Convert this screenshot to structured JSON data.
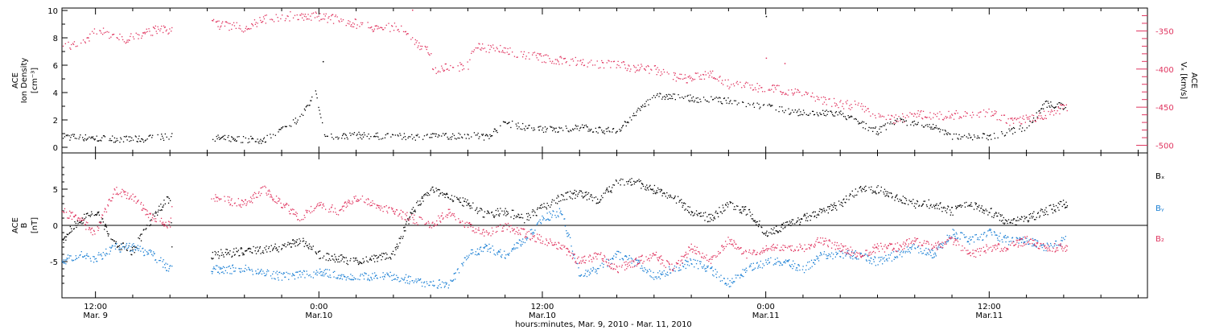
{
  "colors": {
    "axis": "#000000",
    "black": "#000000",
    "pink": "#e0345f",
    "blue": "#1a7fd4"
  },
  "time_axis": {
    "tick_times": [
      12,
      24,
      36,
      48,
      60
    ],
    "tick_labels": [
      [
        "12:00",
        "Mar. 9"
      ],
      [
        "0:00",
        "Mar.10"
      ],
      [
        "12:00",
        "Mar.10"
      ],
      [
        "0:00",
        "Mar.11"
      ],
      [
        "12:00",
        "Mar.11"
      ]
    ],
    "xlabel": "hours:minutes, Mar.  9, 2010 - Mar. 11, 2010",
    "range_hours_since_mar9_0000": [
      10.2,
      68.5
    ]
  },
  "chart_data": [
    {
      "type": "scatter",
      "panel": "top",
      "ylabel_left": [
        "ACE",
        "Ion Density",
        "[cm⁻³]"
      ],
      "ylabel_right": [
        "ACE",
        "Vₓ [km/s]"
      ],
      "y_left": {
        "range": [
          -0.5,
          10
        ],
        "ticks": [
          0,
          2,
          4,
          6,
          8,
          10
        ]
      },
      "y_right": {
        "range": [
          -510,
          -320
        ],
        "ticks": [
          -350,
          -400,
          -450,
          -500
        ]
      },
      "series": [
        {
          "name": "Ion Density",
          "color": "black",
          "axis": "left",
          "knots": [
            [
              10.2,
              0.8
            ],
            [
              14,
              0.6
            ],
            [
              16,
              0.8
            ],
            [
              20.5,
              0.6
            ],
            [
              21,
              0.5
            ],
            [
              23,
              2.2
            ],
            [
              23.8,
              4.0
            ],
            [
              24.3,
              0.8
            ],
            [
              26,
              0.9
            ],
            [
              28,
              0.8
            ],
            [
              30,
              0.8
            ],
            [
              32,
              0.9
            ],
            [
              33,
              0.8
            ],
            [
              34,
              1.8
            ],
            [
              35.5,
              1.4
            ],
            [
              37,
              1.3
            ],
            [
              38,
              1.5
            ],
            [
              39,
              1.3
            ],
            [
              40,
              1.2
            ],
            [
              42,
              3.8
            ],
            [
              44,
              3.6
            ],
            [
              46,
              3.4
            ],
            [
              48,
              3.0
            ],
            [
              50,
              2.5
            ],
            [
              52,
              2.5
            ],
            [
              53,
              1.8
            ],
            [
              54,
              1.2
            ],
            [
              55,
              2.0
            ],
            [
              57,
              1.5
            ],
            [
              58,
              0.8
            ],
            [
              60,
              0.8
            ],
            [
              62,
              1.5
            ],
            [
              63,
              3.2
            ],
            [
              64,
              3.0
            ]
          ],
          "gaps": [
            [
              16.1,
              18.2
            ]
          ],
          "outliers": [
            [
              24.2,
              6.3
            ],
            [
              35.8,
              1.3
            ],
            [
              48.0,
              9.6
            ]
          ]
        },
        {
          "name": "Vx",
          "color": "pink",
          "axis": "right",
          "knots": [
            [
              10.2,
              -372
            ],
            [
              11.3,
              -365
            ],
            [
              12,
              -348
            ],
            [
              13.5,
              -360
            ],
            [
              14.5,
              -355
            ],
            [
              15.5,
              -345
            ],
            [
              16.1,
              -350
            ],
            [
              18.2,
              -340
            ],
            [
              20,
              -345
            ],
            [
              21,
              -335
            ],
            [
              22.5,
              -330
            ],
            [
              24,
              -330
            ],
            [
              25,
              -335
            ],
            [
              26,
              -340
            ],
            [
              27,
              -345
            ],
            [
              28.5,
              -345
            ],
            [
              29,
              -360
            ],
            [
              30,
              -380
            ],
            [
              30.1,
              -400
            ],
            [
              32,
              -395
            ],
            [
              32.3,
              -370
            ],
            [
              34,
              -375
            ],
            [
              36,
              -385
            ],
            [
              38,
              -390
            ],
            [
              40,
              -395
            ],
            [
              42,
              -400
            ],
            [
              43,
              -410
            ],
            [
              44,
              -412
            ],
            [
              45,
              -405
            ],
            [
              46,
              -420
            ],
            [
              48,
              -425
            ],
            [
              50,
              -430
            ],
            [
              51,
              -440
            ],
            [
              52,
              -445
            ],
            [
              53,
              -448
            ],
            [
              54,
              -460
            ],
            [
              55,
              -465
            ],
            [
              56,
              -460
            ],
            [
              58,
              -460
            ],
            [
              60,
              -455
            ],
            [
              61,
              -468
            ],
            [
              62,
              -465
            ],
            [
              63,
              -460
            ],
            [
              64,
              -450
            ]
          ],
          "gaps": [
            [
              16.1,
              18.2
            ]
          ],
          "outliers": [
            [
              29,
              -322
            ],
            [
              48,
              -385
            ],
            [
              49,
              -392
            ]
          ]
        }
      ]
    },
    {
      "type": "scatter",
      "panel": "bottom",
      "ylabel_left": [
        "ACE",
        "B",
        "[nT]"
      ],
      "y_left": {
        "range": [
          -10,
          10
        ],
        "ticks": [
          -5,
          0,
          5
        ]
      },
      "zero_line": true,
      "legend": [
        "Bₓ",
        "Bᵧ",
        "B₂"
      ],
      "series": [
        {
          "name": "Bx",
          "color": "black",
          "knots": [
            [
              10.2,
              -2
            ],
            [
              11,
              0.5
            ],
            [
              12,
              2
            ],
            [
              13,
              -2.5
            ],
            [
              14,
              -3.5
            ],
            [
              15,
              1
            ],
            [
              16,
              4
            ],
            [
              16.1,
              -4
            ],
            [
              18.2,
              -4
            ],
            [
              20,
              -3.5
            ],
            [
              22,
              -3
            ],
            [
              23,
              -2
            ],
            [
              24,
              -4
            ],
            [
              26,
              -5
            ],
            [
              28,
              -4
            ],
            [
              29,
              2
            ],
            [
              30,
              5
            ],
            [
              31,
              4
            ],
            [
              32,
              3
            ],
            [
              33,
              1.5
            ],
            [
              34,
              2
            ],
            [
              35,
              1
            ],
            [
              36,
              2.5
            ],
            [
              37,
              4
            ],
            [
              38,
              4.5
            ],
            [
              39,
              3.5
            ],
            [
              40,
              6
            ],
            [
              41,
              6
            ],
            [
              42,
              5
            ],
            [
              43,
              4
            ],
            [
              44,
              2
            ],
            [
              45,
              1
            ],
            [
              46,
              3
            ],
            [
              47,
              2
            ],
            [
              48,
              -1
            ],
            [
              50,
              1
            ],
            [
              51,
              2
            ],
            [
              52,
              3
            ],
            [
              53,
              5
            ],
            [
              54,
              5
            ],
            [
              55,
              4
            ],
            [
              56,
              3
            ],
            [
              57,
              3
            ],
            [
              58,
              2
            ],
            [
              59,
              3
            ],
            [
              60,
              2
            ],
            [
              61,
              0.5
            ],
            [
              62,
              1
            ],
            [
              63,
              2
            ],
            [
              64,
              3
            ]
          ],
          "gaps": [
            [
              16.1,
              18.2
            ]
          ]
        },
        {
          "name": "By",
          "color": "blue",
          "knots": [
            [
              10.2,
              -5
            ],
            [
              11,
              -4
            ],
            [
              12,
              -4.5
            ],
            [
              13,
              -3
            ],
            [
              14,
              -3
            ],
            [
              15,
              -4
            ],
            [
              16,
              -6
            ],
            [
              16.1,
              -6
            ],
            [
              18.2,
              -6
            ],
            [
              20,
              -6
            ],
            [
              22,
              -7
            ],
            [
              24,
              -6.5
            ],
            [
              26,
              -7
            ],
            [
              28,
              -7
            ],
            [
              30,
              -8
            ],
            [
              31,
              -8
            ],
            [
              32,
              -4
            ],
            [
              33,
              -3
            ],
            [
              34,
              -4
            ],
            [
              35,
              -2
            ],
            [
              36,
              1
            ],
            [
              37,
              2
            ],
            [
              38,
              -7
            ],
            [
              39,
              -6
            ],
            [
              40,
              -4
            ],
            [
              41,
              -5
            ],
            [
              42,
              -7
            ],
            [
              43,
              -6
            ],
            [
              44,
              -5
            ],
            [
              45,
              -6
            ],
            [
              46,
              -8
            ],
            [
              47,
              -6
            ],
            [
              48,
              -5
            ],
            [
              49,
              -5
            ],
            [
              50,
              -6
            ],
            [
              51,
              -4
            ],
            [
              52,
              -4
            ],
            [
              53,
              -4
            ],
            [
              54,
              -5
            ],
            [
              55,
              -4
            ],
            [
              56,
              -3
            ],
            [
              57,
              -4
            ],
            [
              58,
              -1
            ],
            [
              59,
              -2
            ],
            [
              60,
              -1
            ],
            [
              61,
              -2
            ],
            [
              62,
              -2
            ],
            [
              63,
              -3
            ],
            [
              64,
              -2
            ]
          ],
          "gaps": [
            [
              16.1,
              18.2
            ]
          ]
        },
        {
          "name": "Bz",
          "color": "pink",
          "knots": [
            [
              10.2,
              2
            ],
            [
              11,
              1
            ],
            [
              12,
              -1
            ],
            [
              13,
              5
            ],
            [
              14,
              4
            ],
            [
              15,
              1
            ],
            [
              16,
              0
            ],
            [
              16.1,
              4
            ],
            [
              18.2,
              4
            ],
            [
              20,
              3
            ],
            [
              21,
              5
            ],
            [
              22,
              3
            ],
            [
              23,
              1
            ],
            [
              24,
              3
            ],
            [
              25,
              2
            ],
            [
              26,
              4
            ],
            [
              27,
              3
            ],
            [
              28,
              2
            ],
            [
              29,
              1
            ],
            [
              30,
              0
            ],
            [
              31,
              2
            ],
            [
              32,
              0
            ],
            [
              33,
              -1
            ],
            [
              34,
              0
            ],
            [
              35,
              -1
            ],
            [
              36,
              -2
            ],
            [
              37,
              -3
            ],
            [
              38,
              -5
            ],
            [
              39,
              -4
            ],
            [
              40,
              -6
            ],
            [
              41,
              -5
            ],
            [
              42,
              -4
            ],
            [
              43,
              -6
            ],
            [
              44,
              -3
            ],
            [
              45,
              -5
            ],
            [
              46,
              -2
            ],
            [
              47,
              -4
            ],
            [
              48,
              -3
            ],
            [
              50,
              -3
            ],
            [
              51,
              -2
            ],
            [
              52,
              -3
            ],
            [
              53,
              -4
            ],
            [
              54,
              -3
            ],
            [
              55,
              -3
            ],
            [
              56,
              -2
            ],
            [
              57,
              -3
            ],
            [
              58,
              -2
            ],
            [
              59,
              -4
            ],
            [
              60,
              -3
            ],
            [
              61,
              -3
            ],
            [
              62,
              -2
            ],
            [
              63,
              -3
            ],
            [
              64,
              -3
            ]
          ],
          "gaps": [
            [
              16.1,
              18.2
            ]
          ]
        }
      ]
    }
  ]
}
